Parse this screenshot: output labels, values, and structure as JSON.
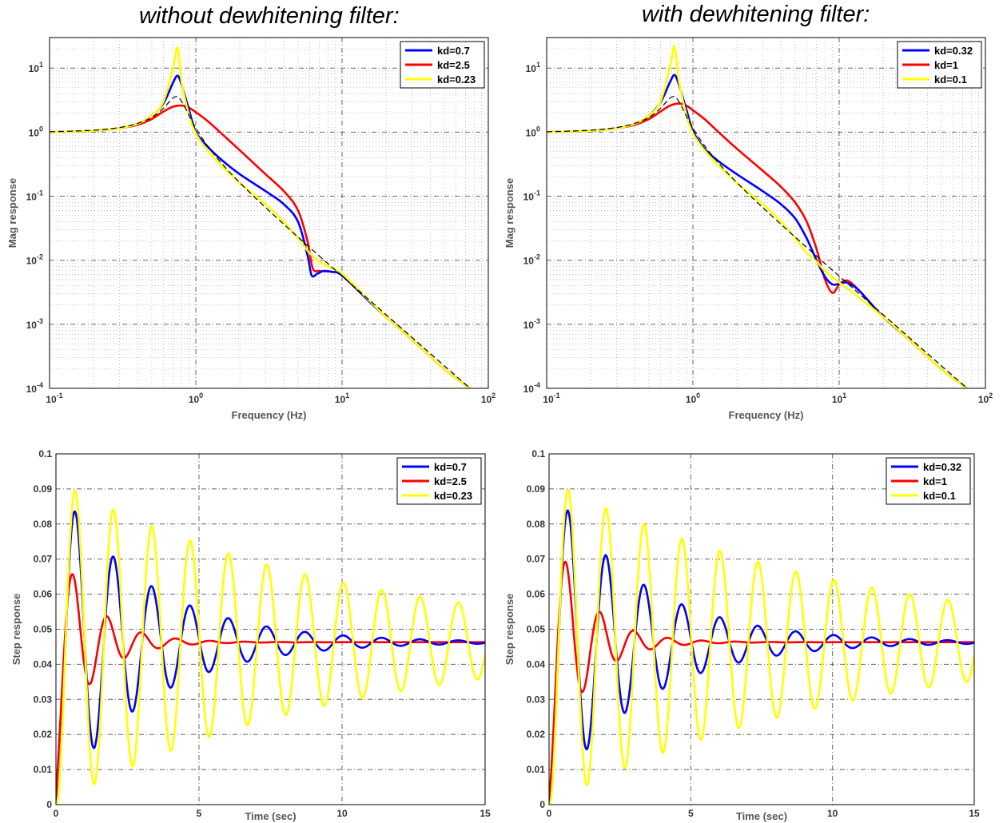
{
  "titles": {
    "left": "without dewhitening filter:",
    "right": "with dewhitening filter:"
  },
  "colors": {
    "blue": "#0000ff",
    "red": "#ff0000",
    "yellow": "#ffff00",
    "reference": "#000000",
    "major_grid": "#666666",
    "minor_grid": "#999999"
  },
  "chart_data": [
    {
      "id": "mag-without",
      "type": "line",
      "xscale": "log",
      "yscale": "log",
      "xlabel": "Frequency (Hz)",
      "ylabel": "Mag response",
      "xlim": [
        0.1,
        100
      ],
      "ylim": [
        0.0001,
        30
      ],
      "xticks": [
        "10^-1",
        "10^0",
        "10^1",
        "10^2"
      ],
      "yticks": [
        "10^-4",
        "10^-3",
        "10^-2",
        "10^-1",
        "10^0",
        "10^1"
      ],
      "grid": true,
      "legend_position": "top-right",
      "legend": [
        "kd=0.7",
        "kd=2.5",
        "kd=0.23"
      ],
      "series": [
        {
          "name": "kd=0.7",
          "color": "#0000ff",
          "x": [
            0.1,
            0.2,
            0.3,
            0.4,
            0.5,
            0.6,
            0.7,
            0.75,
            0.8,
            0.9,
            1.0,
            1.2,
            1.5,
            2.0,
            3.0,
            4.0,
            5.0,
            5.8,
            6.2,
            6.8,
            7.5,
            8.5,
            10,
            15,
            20,
            30,
            50,
            75
          ],
          "y": [
            1.0,
            1.05,
            1.15,
            1.35,
            1.8,
            2.8,
            6.0,
            7.6,
            5.5,
            2.2,
            1.0,
            0.6,
            0.37,
            0.22,
            0.12,
            0.075,
            0.04,
            0.012,
            0.0058,
            0.0062,
            0.0068,
            0.0066,
            0.0058,
            0.0024,
            0.0013,
            0.00058,
            0.0002,
            0.0001
          ]
        },
        {
          "name": "kd=2.5",
          "color": "#ff0000",
          "x": [
            0.1,
            0.2,
            0.3,
            0.4,
            0.5,
            0.6,
            0.7,
            0.8,
            0.9,
            1.0,
            1.2,
            1.5,
            2.0,
            3.0,
            4.0,
            5.0,
            5.8,
            6.3,
            7.0,
            8.5,
            10,
            15,
            20,
            30,
            50,
            75
          ],
          "y": [
            1.0,
            1.05,
            1.15,
            1.3,
            1.6,
            2.1,
            2.5,
            2.6,
            2.4,
            2.05,
            1.5,
            0.95,
            0.52,
            0.22,
            0.12,
            0.06,
            0.02,
            0.0075,
            0.0068,
            0.0066,
            0.0058,
            0.0024,
            0.0013,
            0.00058,
            0.0002,
            0.0001
          ]
        },
        {
          "name": "kd=0.23",
          "color": "#ffff00",
          "x": [
            0.1,
            0.2,
            0.3,
            0.4,
            0.5,
            0.6,
            0.7,
            0.75,
            0.8,
            0.9,
            1.0,
            1.2,
            1.5,
            2.0,
            3.0,
            4.0,
            5.0,
            6.0,
            7.0,
            8.5,
            10,
            15,
            20,
            30,
            50,
            75
          ],
          "y": [
            1.0,
            1.05,
            1.15,
            1.35,
            1.8,
            3.0,
            10.0,
            21.0,
            6.0,
            1.8,
            0.95,
            0.52,
            0.3,
            0.16,
            0.075,
            0.04,
            0.022,
            0.013,
            0.0095,
            0.0075,
            0.0062,
            0.0025,
            0.0013,
            0.00058,
            0.0002,
            0.0001
          ]
        }
      ]
    },
    {
      "id": "mag-with",
      "type": "line",
      "xscale": "log",
      "yscale": "log",
      "xlabel": "Frequency (Hz)",
      "ylabel": "Mag response",
      "xlim": [
        0.1,
        100
      ],
      "ylim": [
        0.0001,
        30
      ],
      "xticks": [
        "10^-1",
        "10^0",
        "10^1",
        "10^2"
      ],
      "yticks": [
        "10^-4",
        "10^-3",
        "10^-2",
        "10^-1",
        "10^0",
        "10^1"
      ],
      "grid": true,
      "legend_position": "top-right",
      "legend": [
        "kd=0.32",
        "kd=1",
        "kd=0.1"
      ],
      "series": [
        {
          "name": "kd=0.32",
          "color": "#0000ff",
          "x": [
            0.1,
            0.2,
            0.3,
            0.4,
            0.5,
            0.6,
            0.7,
            0.75,
            0.8,
            0.9,
            1.0,
            1.2,
            1.5,
            2.0,
            3.0,
            4.0,
            5.0,
            6.0,
            7.0,
            8.0,
            9.0,
            10,
            11,
            12,
            14,
            20,
            30,
            50,
            75
          ],
          "y": [
            1.0,
            1.05,
            1.15,
            1.35,
            1.8,
            2.9,
            6.2,
            7.8,
            5.6,
            2.3,
            1.05,
            0.55,
            0.35,
            0.22,
            0.12,
            0.075,
            0.045,
            0.022,
            0.01,
            0.0055,
            0.0042,
            0.0043,
            0.0045,
            0.0042,
            0.0032,
            0.0013,
            0.00058,
            0.0002,
            0.0001
          ]
        },
        {
          "name": "kd=1",
          "color": "#ff0000",
          "x": [
            0.1,
            0.2,
            0.3,
            0.4,
            0.5,
            0.6,
            0.7,
            0.8,
            0.9,
            1.0,
            1.2,
            1.5,
            2.0,
            3.0,
            4.0,
            5.0,
            6.0,
            7.0,
            8.0,
            9.0,
            10,
            11,
            12,
            14,
            20,
            30,
            50,
            75
          ],
          "y": [
            1.0,
            1.05,
            1.15,
            1.3,
            1.6,
            2.1,
            2.6,
            2.8,
            2.6,
            2.2,
            1.6,
            1.0,
            0.55,
            0.25,
            0.14,
            0.08,
            0.04,
            0.015,
            0.005,
            0.0031,
            0.0042,
            0.0048,
            0.0045,
            0.0032,
            0.0013,
            0.00058,
            0.0002,
            0.0001
          ]
        },
        {
          "name": "kd=0.1",
          "color": "#ffff00",
          "x": [
            0.1,
            0.2,
            0.3,
            0.4,
            0.5,
            0.6,
            0.7,
            0.75,
            0.8,
            0.9,
            1.0,
            1.2,
            1.5,
            2.0,
            3.0,
            4.0,
            5.0,
            6.0,
            7.0,
            8.0,
            10,
            12,
            14,
            20,
            30,
            50,
            75
          ],
          "y": [
            1.0,
            1.05,
            1.15,
            1.35,
            1.8,
            3.0,
            11.0,
            22.0,
            6.5,
            1.9,
            0.95,
            0.52,
            0.3,
            0.16,
            0.075,
            0.04,
            0.022,
            0.013,
            0.0095,
            0.0068,
            0.0045,
            0.0033,
            0.0025,
            0.0013,
            0.00058,
            0.0002,
            0.0001
          ]
        }
      ]
    },
    {
      "id": "step-without",
      "type": "line",
      "xlabel": "Time (sec)",
      "ylabel": "Step response",
      "xlim": [
        0,
        15
      ],
      "ylim": [
        0,
        0.1
      ],
      "xticks": [
        0,
        5,
        10,
        15
      ],
      "yticks": [
        0,
        0.01,
        0.02,
        0.03,
        0.04,
        0.05,
        0.06,
        0.07,
        0.08,
        0.09,
        0.1
      ],
      "grid": true,
      "legend_position": "top-right",
      "legend": [
        "kd=0.7",
        "kd=2.5",
        "kd=0.23"
      ],
      "final_value": 0.0463,
      "series": [
        {
          "name": "kd=0.7",
          "color": "#0000ff",
          "period": 1.34,
          "first_peak": 0.0835,
          "peak_decay": 0.655
        },
        {
          "name": "kd=2.5",
          "color": "#ff0000",
          "period": 1.2,
          "first_peak": 0.0655,
          "peak_decay": 0.38
        },
        {
          "name": "kd=0.23",
          "color": "#ffff00",
          "period": 1.34,
          "first_peak": 0.0895,
          "peak_decay": 0.875
        }
      ]
    },
    {
      "id": "step-with",
      "type": "line",
      "xlabel": "Time (sec)",
      "ylabel": "Step response",
      "xlim": [
        0,
        15
      ],
      "ylim": [
        0,
        0.1
      ],
      "xticks": [
        0,
        5,
        10,
        15
      ],
      "yticks": [
        0,
        0.01,
        0.02,
        0.03,
        0.04,
        0.05,
        0.06,
        0.07,
        0.08,
        0.09,
        0.1
      ],
      "grid": true,
      "legend_position": "top-right",
      "legend": [
        "kd=0.32",
        "kd=1",
        "kd=0.1"
      ],
      "final_value": 0.0463,
      "series": [
        {
          "name": "kd=0.32",
          "color": "#0000ff",
          "period": 1.34,
          "first_peak": 0.0838,
          "peak_decay": 0.66
        },
        {
          "name": "kd=1",
          "color": "#ff0000",
          "period": 1.2,
          "first_peak": 0.069,
          "peak_decay": 0.38
        },
        {
          "name": "kd=0.1",
          "color": "#ffff00",
          "period": 1.34,
          "first_peak": 0.0897,
          "peak_decay": 0.88
        }
      ]
    }
  ]
}
